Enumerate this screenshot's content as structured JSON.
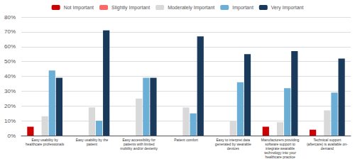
{
  "chart_data": {
    "type": "bar",
    "categories": [
      "Easy usability by\nhealthcare professionals",
      "Easy usability by the\npatient",
      "Easy accessibility for\npatients with limited\nmobility and/or dexterity",
      "Patient comfort",
      "Easy to interpret data\ngenerated by wearable\ndevices",
      "Manufacturers providing\nsoftware support to\nintegrate wearable\ntechnology into your\nhealthcare practice",
      "Technical support\n(aftercare) is available on-\ndemand"
    ],
    "series": [
      {
        "name": "Not Important",
        "color": "#cc0000",
        "values": [
          6,
          0,
          0,
          0,
          0,
          6,
          4
        ]
      },
      {
        "name": "Slightly Important",
        "color": "#ff6666",
        "values": [
          0,
          0,
          0,
          0,
          0,
          0,
          0
        ]
      },
      {
        "name": "Moderately Important",
        "color": "#d9d9d9",
        "values": [
          13,
          19,
          25,
          19,
          10,
          9,
          17
        ]
      },
      {
        "name": "Important",
        "color": "#6baed6",
        "values": [
          44,
          10,
          39,
          15,
          36,
          32,
          29
        ]
      },
      {
        "name": "Very Important",
        "color": "#1a3a5c",
        "values": [
          39,
          71,
          39,
          67,
          55,
          57,
          52
        ]
      }
    ],
    "ylim": [
      0,
      80
    ],
    "yticks": [
      {
        "value": 0,
        "label": "0%"
      },
      {
        "value": 10,
        "label": "10%"
      },
      {
        "value": 20,
        "label": "20%"
      },
      {
        "value": 30,
        "label": "30%"
      },
      {
        "value": 40,
        "label": "40%"
      },
      {
        "value": 50,
        "label": "50%"
      },
      {
        "value": 60,
        "label": "60%"
      },
      {
        "value": 70,
        "label": "70%"
      },
      {
        "value": 80,
        "label": "80%"
      }
    ],
    "grid": true,
    "legend": "top"
  }
}
